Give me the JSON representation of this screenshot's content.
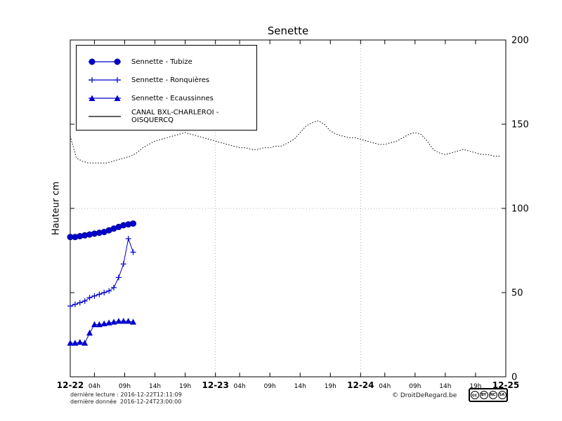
{
  "title": "Senette",
  "axes": {
    "ylabel": "Hauteur cm"
  },
  "footer": {
    "line1": "dernière lecture : 2016-12-22T12:11:09",
    "line2": "dernière donnée  2016-12-24T23:00:00",
    "copyright": "© DroitDeRegard.be",
    "license": {
      "cc": "cc",
      "labels": [
        "BY",
        "NC",
        "SA"
      ]
    }
  },
  "chart_data": {
    "type": "line",
    "title": "Senette",
    "ylabel": "Hauteur cm",
    "ylim": [
      0,
      200
    ],
    "xlim": [
      0,
      72
    ],
    "x_unit": "hours since 2016-12-22 00:00",
    "yticks": [
      0,
      50,
      100,
      150,
      200
    ],
    "xticks": [
      {
        "h": 0,
        "label": "12-22",
        "day": true
      },
      {
        "h": 4,
        "label": "04h"
      },
      {
        "h": 9,
        "label": "09h"
      },
      {
        "h": 14,
        "label": "14h"
      },
      {
        "h": 19,
        "label": "19h"
      },
      {
        "h": 24,
        "label": "12-23",
        "day": true
      },
      {
        "h": 28,
        "label": "04h"
      },
      {
        "h": 33,
        "label": "09h"
      },
      {
        "h": 38,
        "label": "14h"
      },
      {
        "h": 43,
        "label": "19h"
      },
      {
        "h": 48,
        "label": "12-24",
        "day": true
      },
      {
        "h": 52,
        "label": "04h"
      },
      {
        "h": 57,
        "label": "09h"
      },
      {
        "h": 62,
        "label": "14h"
      },
      {
        "h": 67,
        "label": "19h"
      },
      {
        "h": 72,
        "label": "12-25",
        "day": true
      }
    ],
    "grid": {
      "x": [
        24,
        48
      ],
      "y": [
        100
      ]
    },
    "legend_position": "upper left",
    "series": [
      {
        "name": "Sennette - Tubize",
        "color": "#0000cc",
        "marker": "circle",
        "style": "solid",
        "points": [
          [
            0,
            83
          ],
          [
            0.8,
            83
          ],
          [
            1.6,
            83.5
          ],
          [
            2.4,
            84
          ],
          [
            3.2,
            84.5
          ],
          [
            4,
            85
          ],
          [
            4.8,
            85.5
          ],
          [
            5.6,
            86
          ],
          [
            6.4,
            87
          ],
          [
            7.2,
            88
          ],
          [
            8,
            89
          ],
          [
            8.8,
            90
          ],
          [
            9.6,
            90.5
          ],
          [
            10.4,
            91
          ]
        ]
      },
      {
        "name": "Sennette - Ronquières",
        "color": "#0000cc",
        "marker": "plus",
        "style": "solid",
        "points": [
          [
            0,
            42
          ],
          [
            0.8,
            43
          ],
          [
            1.6,
            44
          ],
          [
            2.4,
            45
          ],
          [
            3.2,
            47
          ],
          [
            4,
            48
          ],
          [
            4.8,
            49
          ],
          [
            5.6,
            50
          ],
          [
            6.4,
            51
          ],
          [
            7.2,
            53
          ],
          [
            8,
            59
          ],
          [
            8.8,
            67
          ],
          [
            9.6,
            82
          ],
          [
            10.4,
            74
          ]
        ]
      },
      {
        "name": "Sennette - Ecaussinnes",
        "color": "#0000cc",
        "marker": "triangle",
        "style": "solid",
        "points": [
          [
            0,
            20
          ],
          [
            0.8,
            20
          ],
          [
            1.6,
            20.5
          ],
          [
            2.4,
            20
          ],
          [
            3.2,
            26
          ],
          [
            4,
            31
          ],
          [
            4.8,
            31
          ],
          [
            5.6,
            31.5
          ],
          [
            6.4,
            32
          ],
          [
            7.2,
            32.5
          ],
          [
            8,
            33
          ],
          [
            8.8,
            33
          ],
          [
            9.6,
            33
          ],
          [
            10.4,
            32.5
          ]
        ]
      },
      {
        "name": "CANAL BXL-CHARLEROI  - OISQUERCQ",
        "color": "#000000",
        "marker": "none",
        "style": "dotted",
        "points": [
          [
            0,
            143
          ],
          [
            1,
            130
          ],
          [
            2,
            128
          ],
          [
            3,
            127
          ],
          [
            4,
            127
          ],
          [
            5,
            127
          ],
          [
            6,
            127
          ],
          [
            7,
            128
          ],
          [
            8,
            129
          ],
          [
            9,
            130
          ],
          [
            10,
            131
          ],
          [
            11,
            133
          ],
          [
            12,
            136
          ],
          [
            13,
            138
          ],
          [
            14,
            140
          ],
          [
            15,
            141
          ],
          [
            16,
            142
          ],
          [
            17,
            143
          ],
          [
            18,
            144
          ],
          [
            19,
            145
          ],
          [
            20,
            144
          ],
          [
            21,
            143
          ],
          [
            22,
            142
          ],
          [
            23,
            141
          ],
          [
            24,
            140
          ],
          [
            25,
            139
          ],
          [
            26,
            138
          ],
          [
            27,
            137
          ],
          [
            28,
            136
          ],
          [
            29,
            136
          ],
          [
            30,
            135
          ],
          [
            31,
            135
          ],
          [
            32,
            136
          ],
          [
            33,
            136
          ],
          [
            34,
            137
          ],
          [
            35,
            137
          ],
          [
            36,
            139
          ],
          [
            37,
            141
          ],
          [
            38,
            145
          ],
          [
            39,
            149
          ],
          [
            40,
            151
          ],
          [
            41,
            152
          ],
          [
            42,
            150
          ],
          [
            43,
            146
          ],
          [
            44,
            144
          ],
          [
            45,
            143
          ],
          [
            46,
            142
          ],
          [
            47,
            142
          ],
          [
            48,
            141
          ],
          [
            49,
            140
          ],
          [
            50,
            139
          ],
          [
            51,
            138
          ],
          [
            52,
            138
          ],
          [
            53,
            139
          ],
          [
            54,
            140
          ],
          [
            55,
            142
          ],
          [
            56,
            144
          ],
          [
            57,
            145
          ],
          [
            58,
            144
          ],
          [
            59,
            140
          ],
          [
            60,
            135
          ],
          [
            61,
            133
          ],
          [
            62,
            132
          ],
          [
            63,
            133
          ],
          [
            64,
            134
          ],
          [
            65,
            135
          ],
          [
            66,
            134
          ],
          [
            67,
            133
          ],
          [
            68,
            132
          ],
          [
            69,
            132
          ],
          [
            70,
            131
          ],
          [
            71,
            131
          ]
        ]
      }
    ]
  }
}
